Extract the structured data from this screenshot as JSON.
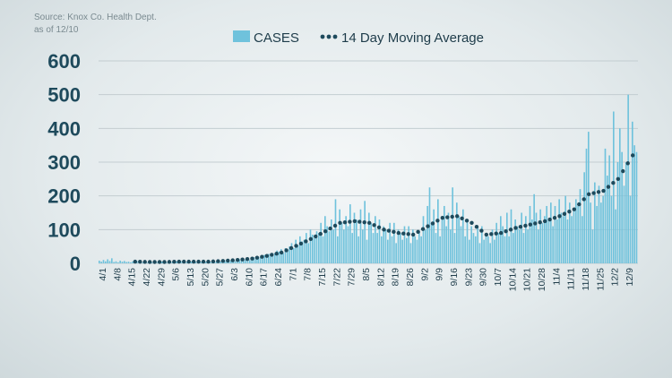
{
  "source_lines": [
    "Source: Knox Co. Health Dept.",
    "as of 12/10"
  ],
  "colors": {
    "bar": "#6fc2dc",
    "average": "#1e4a5c",
    "text": "#1e4a5c"
  },
  "chart_data": {
    "type": "bar",
    "title": "",
    "xlabel": "",
    "ylabel": "",
    "ylim": [
      0,
      600
    ],
    "yticks": [
      0,
      100,
      200,
      300,
      400,
      500,
      600
    ],
    "legend_placement": "top-center",
    "grid": true,
    "x_start": "4/1",
    "x_end": "12/9",
    "xtick_labels": [
      "4/1",
      "4/8",
      "4/15",
      "4/22",
      "4/29",
      "5/6",
      "5/13",
      "5/20",
      "5/27",
      "6/3",
      "6/10",
      "6/17",
      "6/24",
      "7/1",
      "7/8",
      "7/15",
      "7/22",
      "7/29",
      "8/5",
      "8/12",
      "8/19",
      "8/26",
      "9/2",
      "9/9",
      "9/16",
      "9/23",
      "9/30",
      "10/7",
      "10/14",
      "10/21",
      "10/28",
      "11/4",
      "11/11",
      "11/18",
      "11/25",
      "12/2",
      "12/9"
    ],
    "series": [
      {
        "name": "CASES",
        "type": "bar",
        "weekly_daily_values": [
          [
            8,
            5,
            10,
            6,
            12,
            7,
            15
          ],
          [
            4,
            6,
            3,
            8,
            5,
            7,
            4
          ],
          [
            5,
            3,
            6,
            4,
            7,
            5,
            3
          ],
          [
            3,
            4,
            2,
            5,
            3,
            4,
            6
          ],
          [
            4,
            3,
            5,
            6,
            3,
            4,
            2
          ],
          [
            5,
            4,
            6,
            3,
            7,
            5,
            4
          ],
          [
            4,
            6,
            5,
            3,
            4,
            6,
            5
          ],
          [
            5,
            7,
            4,
            6,
            5,
            3,
            6
          ],
          [
            6,
            8,
            5,
            7,
            9,
            6,
            8
          ],
          [
            8,
            10,
            7,
            9,
            12,
            8,
            11
          ],
          [
            12,
            15,
            10,
            14,
            18,
            12,
            16
          ],
          [
            18,
            22,
            25,
            20,
            28,
            24,
            30
          ],
          [
            30,
            38,
            35,
            42,
            30,
            45,
            40
          ],
          [
            50,
            60,
            45,
            70,
            55,
            80,
            65
          ],
          [
            70,
            90,
            60,
            100,
            85,
            75,
            95
          ],
          [
            90,
            120,
            80,
            140,
            110,
            95,
            130
          ],
          [
            100,
            190,
            80,
            160,
            120,
            100,
            140
          ],
          [
            110,
            175,
            90,
            150,
            130,
            80,
            160
          ],
          [
            100,
            185,
            70,
            150,
            120,
            90,
            140
          ],
          [
            90,
            130,
            80,
            110,
            100,
            70,
            120
          ],
          [
            80,
            120,
            60,
            100,
            90,
            70,
            110
          ],
          [
            75,
            110,
            60,
            100,
            80,
            70,
            95
          ],
          [
            80,
            140,
            100,
            170,
            225,
            120,
            160
          ],
          [
            90,
            190,
            80,
            140,
            170,
            110,
            150
          ],
          [
            100,
            225,
            90,
            180,
            140,
            110,
            160
          ],
          [
            80,
            130,
            70,
            110,
            90,
            80,
            110
          ],
          [
            60,
            110,
            70,
            90,
            80,
            60,
            100
          ],
          [
            70,
            120,
            90,
            140,
            110,
            80,
            150
          ],
          [
            80,
            160,
            90,
            130,
            110,
            100,
            150
          ],
          [
            90,
            140,
            100,
            170,
            130,
            205,
            150
          ],
          [
            100,
            160,
            120,
            140,
            170,
            130,
            180
          ],
          [
            110,
            170,
            130,
            190,
            150,
            140,
            200
          ],
          [
            130,
            180,
            140,
            160,
            190,
            170,
            220
          ],
          [
            140,
            270,
            340,
            390,
            180,
            100,
            240
          ],
          [
            170,
            230,
            180,
            200,
            340,
            260,
            320
          ],
          [
            200,
            450,
            160,
            300,
            400,
            330,
            230
          ],
          [
            300,
            500,
            200,
            420,
            350,
            330
          ]
        ]
      },
      {
        "name": "14 Day Moving Average",
        "type": "line",
        "weekly_values": [
          6,
          6,
          5,
          4,
          4,
          5,
          5,
          5,
          7,
          10,
          14,
          22,
          32,
          52,
          72,
          95,
          120,
          125,
          120,
          100,
          90,
          85,
          110,
          135,
          140,
          120,
          85,
          90,
          105,
          115,
          125,
          140,
          160,
          205,
          215,
          250,
          320
        ]
      }
    ]
  }
}
